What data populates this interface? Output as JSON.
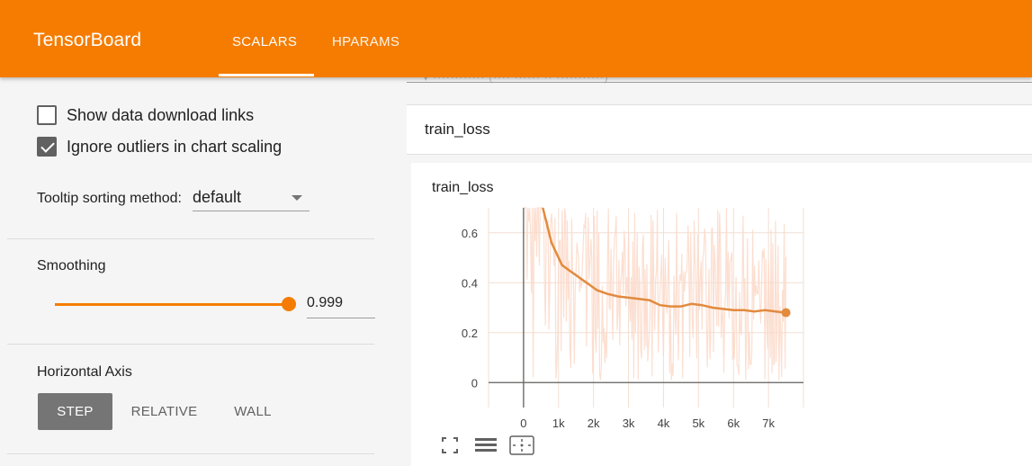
{
  "header": {
    "brand": "TensorBoard",
    "tabs": [
      {
        "label": "SCALARS",
        "active": true
      },
      {
        "label": "HPARAMS",
        "active": false
      }
    ],
    "color": "#f57c00"
  },
  "sidebar": {
    "show_download_links": {
      "label": "Show data download links",
      "checked": false
    },
    "ignore_outliers": {
      "label": "Ignore outliers in chart scaling",
      "checked": true
    },
    "tooltip_sorting": {
      "label": "Tooltip sorting method:",
      "value": "default"
    },
    "smoothing": {
      "title": "Smoothing",
      "value": "0.999",
      "level": 0.999
    },
    "horizontal_axis": {
      "title": "Horizontal Axis",
      "buttons": [
        {
          "label": "STEP",
          "active": true
        },
        {
          "label": "RELATIVE",
          "active": false
        },
        {
          "label": "WALL",
          "active": false
        }
      ]
    }
  },
  "main": {
    "top_text": "▾ ············ (···· ······ ·· ···········)",
    "group_title": "train_loss",
    "card_title": "train_loss",
    "icons": [
      "fit-domain-icon",
      "toggle-log-icon",
      "reset-zoom-icon"
    ]
  },
  "chart_data": {
    "type": "line",
    "title": "train_loss",
    "xlabel": "",
    "ylabel": "",
    "xlim": [
      -1000,
      8000
    ],
    "ylim": [
      -0.1,
      0.7
    ],
    "x_ticks": [
      "0",
      "1k",
      "2k",
      "3k",
      "4k",
      "5k",
      "6k",
      "7k"
    ],
    "x_tick_values": [
      0,
      1000,
      2000,
      3000,
      4000,
      5000,
      6000,
      7000
    ],
    "y_ticks": [
      "0",
      "0.2",
      "0.4",
      "0.6"
    ],
    "y_tick_values": [
      0,
      0.2,
      0.4,
      0.6
    ],
    "grid": true,
    "colors": {
      "smoothed": "#e28a3e",
      "raw": "#fbd9c9"
    },
    "series": [
      {
        "smoothed": true,
        "x": [
          550,
          800,
          1100,
          1300,
          1500,
          1700,
          1900,
          2100,
          2400,
          2700,
          3000,
          3300,
          3600,
          3900,
          4200,
          4500,
          4800,
          5100,
          5400,
          5700,
          6000,
          6300,
          6600,
          6900,
          7200,
          7500
        ],
        "y": [
          0.7,
          0.56,
          0.47,
          0.45,
          0.43,
          0.41,
          0.39,
          0.37,
          0.355,
          0.345,
          0.34,
          0.335,
          0.33,
          0.31,
          0.305,
          0.305,
          0.315,
          0.31,
          0.3,
          0.295,
          0.29,
          0.29,
          0.285,
          0.29,
          0.285,
          0.28
        ]
      }
    ]
  }
}
